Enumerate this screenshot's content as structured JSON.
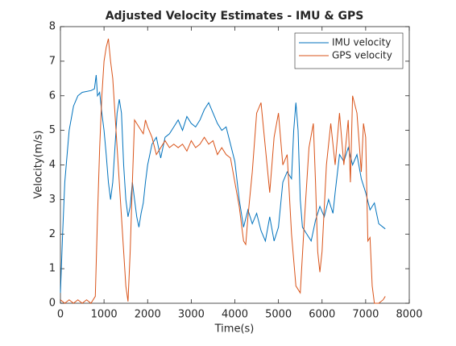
{
  "chart_data": {
    "type": "line",
    "title": "Adjusted Velocity Estimates - IMU & GPS",
    "x_label": "Time(s)",
    "y_label": "Velocity(m/s)",
    "xlim": [
      0,
      8000
    ],
    "xticks": [
      0,
      1000,
      2000,
      3000,
      4000,
      5000,
      6000,
      7000,
      8000
    ],
    "ylim": [
      0,
      8
    ],
    "yticks": [
      0,
      1,
      2,
      3,
      4,
      5,
      6,
      7,
      8
    ],
    "legend": "northeast",
    "grid": false,
    "series": [
      {
        "name": "IMU velocity",
        "color": "#0072bd",
        "x": [
          0,
          50,
          100,
          200,
          300,
          400,
          500,
          700,
          780,
          820,
          850,
          900,
          950,
          1000,
          1050,
          1100,
          1150,
          1200,
          1250,
          1300,
          1350,
          1400,
          1450,
          1500,
          1550,
          1600,
          1650,
          1700,
          1750,
          1800,
          1850,
          1900,
          1950,
          2000,
          2100,
          2200,
          2300,
          2400,
          2500,
          2600,
          2700,
          2800,
          2900,
          3000,
          3100,
          3200,
          3300,
          3400,
          3500,
          3600,
          3700,
          3800,
          3900,
          4000,
          4100,
          4200,
          4300,
          4400,
          4500,
          4600,
          4700,
          4800,
          4900,
          5000,
          5100,
          5200,
          5300,
          5350,
          5400,
          5450,
          5500,
          5550,
          5650,
          5750,
          5850,
          5950,
          6050,
          6150,
          6250,
          6300,
          6400,
          6500,
          6600,
          6700,
          6800,
          6900,
          7000,
          7100,
          7200,
          7300,
          7400,
          7450
        ],
        "values": [
          0.3,
          2,
          3.5,
          5,
          5.7,
          6,
          6.1,
          6.15,
          6.2,
          6.6,
          6.0,
          6.1,
          5.5,
          5.0,
          4.3,
          3.5,
          3.0,
          3.5,
          4.5,
          5.5,
          5.9,
          5.5,
          4.0,
          3.0,
          2.5,
          2.8,
          3.5,
          3.0,
          2.5,
          2.2,
          2.6,
          2.9,
          3.5,
          4.0,
          4.6,
          4.8,
          4.2,
          4.8,
          4.9,
          5.1,
          5.3,
          5.0,
          5.4,
          5.2,
          5.1,
          5.3,
          5.6,
          5.8,
          5.5,
          5.2,
          5.0,
          5.1,
          4.6,
          4.1,
          3.0,
          2.2,
          2.7,
          2.3,
          2.6,
          2.1,
          1.8,
          2.5,
          1.8,
          2.2,
          3.5,
          3.8,
          3.6,
          5.0,
          5.8,
          5.0,
          3.0,
          2.2,
          2.0,
          1.8,
          2.4,
          2.8,
          2.5,
          3.0,
          2.6,
          3.2,
          4.3,
          4.1,
          4.5,
          4.0,
          4.3,
          3.6,
          3.2,
          2.7,
          2.9,
          2.3,
          2.2,
          2.15
        ]
      },
      {
        "name": "GPS velocity",
        "color": "#d95319",
        "x": [
          0,
          100,
          200,
          300,
          400,
          500,
          600,
          700,
          800,
          850,
          900,
          950,
          1000,
          1050,
          1100,
          1150,
          1200,
          1250,
          1300,
          1350,
          1400,
          1450,
          1500,
          1550,
          1600,
          1650,
          1700,
          1800,
          1900,
          1950,
          2000,
          2100,
          2200,
          2300,
          2400,
          2500,
          2600,
          2700,
          2800,
          2900,
          3000,
          3100,
          3200,
          3300,
          3400,
          3500,
          3600,
          3700,
          3800,
          3900,
          4000,
          4100,
          4200,
          4250,
          4300,
          4400,
          4500,
          4600,
          4700,
          4800,
          4900,
          5000,
          5100,
          5200,
          5300,
          5400,
          5500,
          5600,
          5700,
          5800,
          5850,
          5900,
          5950,
          6000,
          6100,
          6200,
          6300,
          6400,
          6500,
          6600,
          6650,
          6700,
          6800,
          6900,
          6950,
          7000,
          7050,
          7100,
          7150,
          7200,
          7300,
          7400,
          7450
        ],
        "values": [
          0.1,
          0,
          0.1,
          0,
          0.1,
          0,
          0.1,
          0,
          0.2,
          2.5,
          4.5,
          6.0,
          7.0,
          7.4,
          7.65,
          7.0,
          6.5,
          5.5,
          4.5,
          3.5,
          2.5,
          1.5,
          0.5,
          0.05,
          1.5,
          3.5,
          5.3,
          5.1,
          4.9,
          5.3,
          5.1,
          4.8,
          4.3,
          4.5,
          4.7,
          4.5,
          4.6,
          4.5,
          4.6,
          4.4,
          4.7,
          4.5,
          4.6,
          4.8,
          4.6,
          4.7,
          4.3,
          4.5,
          4.3,
          4.2,
          3.5,
          2.8,
          1.8,
          1.7,
          2.5,
          3.8,
          5.5,
          5.8,
          4.5,
          3.2,
          4.8,
          5.5,
          4.0,
          4.3,
          2.0,
          0.5,
          0.3,
          2.5,
          4.5,
          5.2,
          3.5,
          1.5,
          0.9,
          1.5,
          4.0,
          5.2,
          4.0,
          5.5,
          4.0,
          5.3,
          3.5,
          6.0,
          5.5,
          3.8,
          5.2,
          4.8,
          1.8,
          1.9,
          0.5,
          0.0,
          0.0,
          0.1,
          0.2
        ]
      }
    ]
  }
}
